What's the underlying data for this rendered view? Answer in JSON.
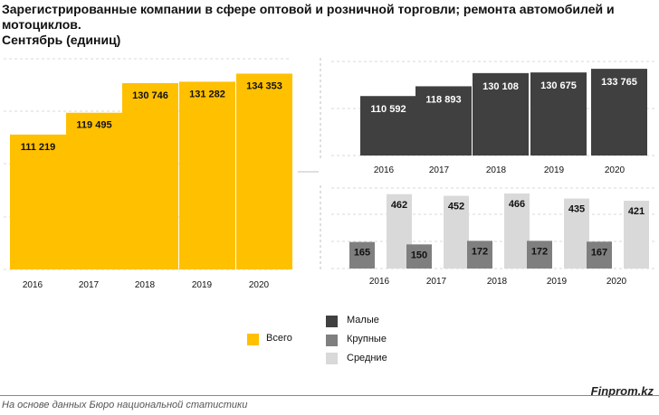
{
  "title_line1": "Зарегистрированные компании в сфере оптовой и розничной торговли; ремонта автомобилей и мотоциклов.",
  "title_line2": "Сентябрь  (единиц)",
  "brand": "Finprom.kz",
  "source": "На основе данных Бюро национальной статистики",
  "legend": {
    "total": "Всего",
    "small": "Малые",
    "large": "Крупные",
    "medium": "Средние"
  },
  "colors": {
    "total": "#FFC000",
    "small": "#404040",
    "large": "#7F7F7F",
    "medium": "#D9D9D9"
  },
  "chart_data": [
    {
      "type": "bar",
      "categories": [
        "2016",
        "2017",
        "2018",
        "2019",
        "2020"
      ],
      "series": [
        {
          "name": "Всего",
          "values": [
            111219,
            119495,
            130746,
            131282,
            134353
          ]
        }
      ],
      "labels": [
        "111 219",
        "119 495",
        "130 746",
        "131 282",
        "134 353"
      ],
      "grid": true,
      "legend_position": "bottom"
    },
    {
      "type": "bar",
      "categories": [
        "2016",
        "2017",
        "2018",
        "2019",
        "2020"
      ],
      "series": [
        {
          "name": "Малые",
          "values": [
            110592,
            118893,
            130108,
            130675,
            133765
          ]
        }
      ],
      "labels": [
        "110 592",
        "118 893",
        "130 108",
        "130 675",
        "133 765"
      ],
      "grid": true
    },
    {
      "type": "bar",
      "categories": [
        "2016",
        "2017",
        "2018",
        "2019",
        "2020"
      ],
      "series": [
        {
          "name": "Крупные",
          "values": [
            165,
            150,
            172,
            172,
            167
          ]
        },
        {
          "name": "Средние",
          "values": [
            462,
            452,
            466,
            435,
            421
          ]
        }
      ],
      "grid": true,
      "legend_position": "left"
    }
  ]
}
